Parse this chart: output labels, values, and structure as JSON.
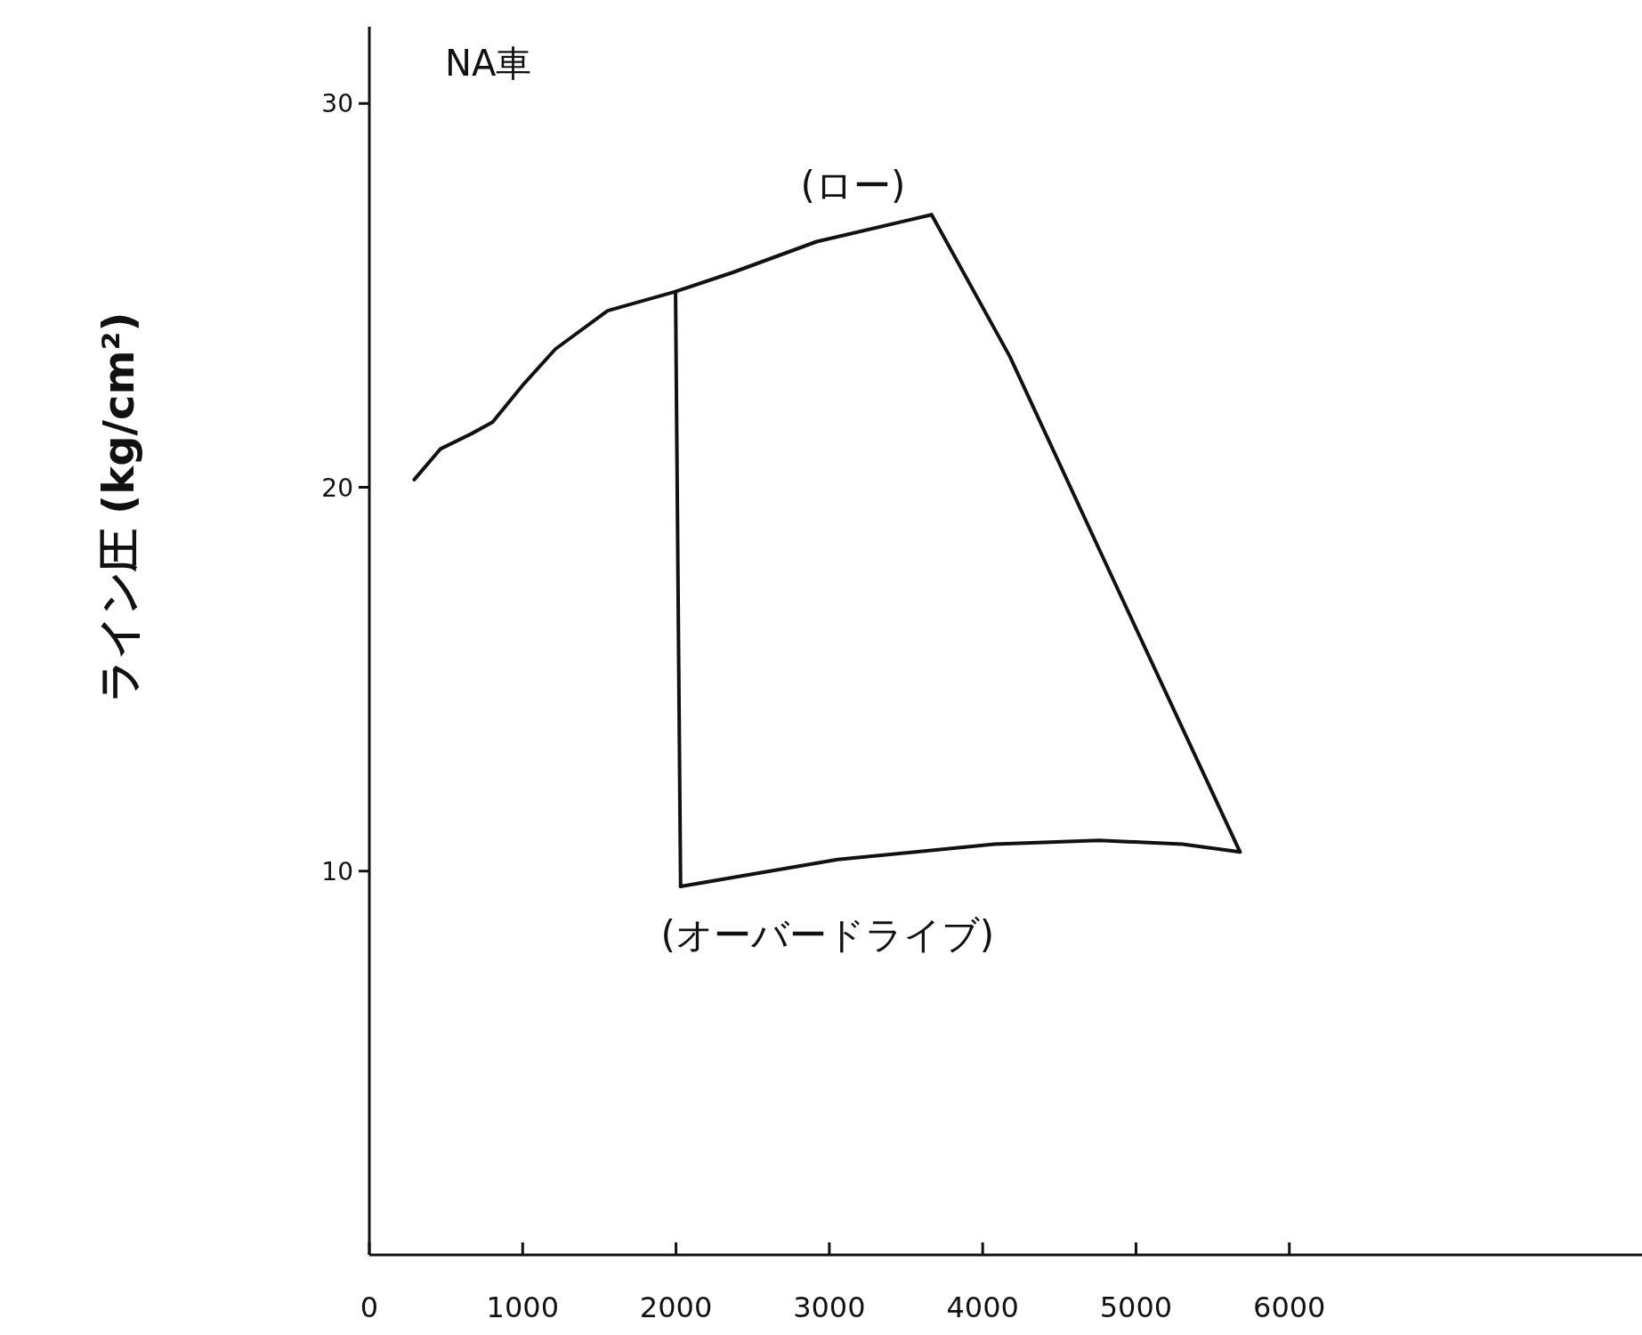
{
  "chart_data": {
    "type": "line",
    "title": "NA車",
    "ylabel": "ライン圧 (kg/cm²)",
    "xlim": [
      0,
      8300
    ],
    "ylim": [
      0,
      32
    ],
    "xticks": [
      0,
      1000,
      2000,
      3000,
      4000,
      5000,
      6000
    ],
    "yticks": [
      10,
      20,
      30
    ],
    "grid": false,
    "marker": "none",
    "line_style": "solid",
    "series": [
      {
        "color": "#111111",
        "x": [
          293,
          464,
          668,
          804,
          1009,
          1213,
          1554,
          1997,
          2372,
          2917,
          3667
        ],
        "values": [
          20.2,
          21.0,
          21.4,
          21.7,
          22.7,
          23.6,
          24.6,
          25.1,
          25.6,
          26.4,
          27.1
        ]
      },
      {
        "color": "#111111",
        "x": [
          3667,
          4178,
          4758,
          5678
        ],
        "values": [
          27.1,
          23.4,
          18.4,
          10.5
        ]
      },
      {
        "color": "#111111",
        "x": [
          1997,
          2030
        ],
        "values": [
          25.1,
          9.6
        ]
      },
      {
        "color": "#111111",
        "x": [
          2030,
          3054,
          4076,
          4758,
          5303,
          5678
        ],
        "values": [
          9.6,
          10.3,
          10.7,
          10.8,
          10.7,
          10.5
        ]
      }
    ],
    "annotations": [
      "(ロー)",
      "(オーバードライブ)"
    ]
  }
}
